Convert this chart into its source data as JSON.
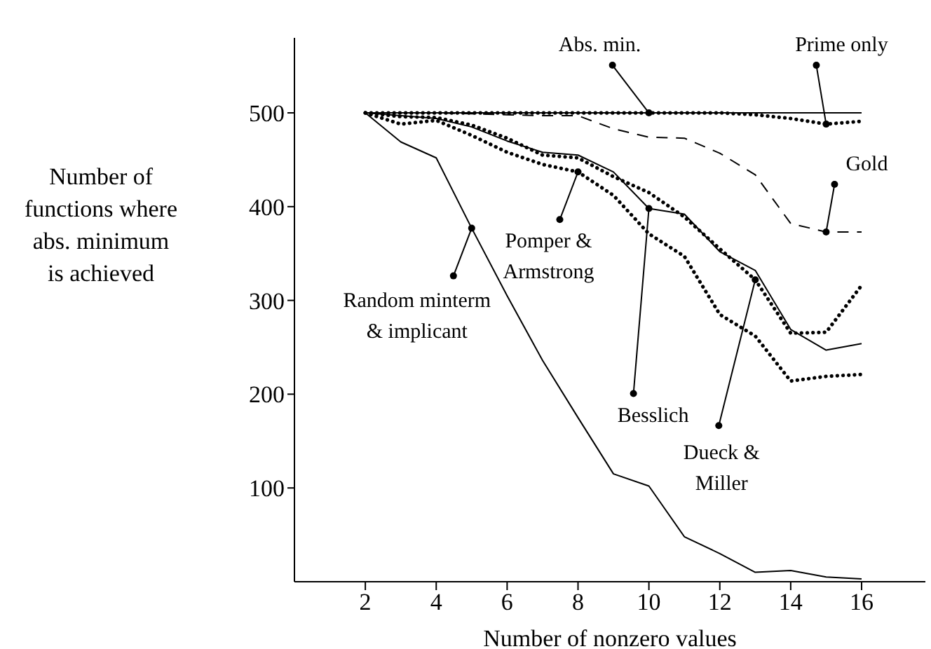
{
  "chart_data": {
    "type": "line",
    "xlabel": "Number of nonzero values",
    "ylabel": "Number of\nfunctions where\nabs. minimum\nis achieved",
    "x": [
      2,
      3,
      4,
      5,
      6,
      7,
      8,
      9,
      10,
      11,
      12,
      13,
      14,
      15,
      16
    ],
    "series": [
      {
        "color": "#000000",
        "line_style": "solid",
        "values": [
          500,
          500,
          500,
          500,
          500,
          500,
          500,
          500,
          500,
          500,
          500,
          500,
          500,
          500,
          500
        ]
      },
      {
        "color": "#000000",
        "line_style": "dotted",
        "values": [
          500,
          500,
          500,
          500,
          500,
          500,
          500,
          500,
          500,
          500,
          500,
          498,
          494,
          488,
          491
        ]
      },
      {
        "color": "#000000",
        "line_style": "dashed",
        "values": [
          500,
          500,
          500,
          499,
          498,
          497,
          497,
          483,
          474,
          473,
          457,
          434,
          382,
          373,
          373
        ]
      },
      {
        "color": "#000000",
        "line_style": "solid",
        "values": [
          500,
          497,
          494,
          485,
          470,
          458,
          455,
          437,
          398,
          392,
          352,
          332,
          269,
          247,
          254
        ]
      },
      {
        "color": "#000000",
        "line_style": "dotted",
        "values": [
          500,
          496,
          495,
          487,
          473,
          455,
          452,
          432,
          415,
          389,
          355,
          322,
          265,
          266,
          316
        ]
      },
      {
        "color": "#000000",
        "line_style": "dotted",
        "values": [
          500,
          488,
          492,
          476,
          458,
          445,
          437,
          412,
          371,
          347,
          285,
          262,
          214,
          219,
          221
        ]
      },
      {
        "color": "#000000",
        "line_style": "solid",
        "values": [
          500,
          469,
          452,
          377,
          305,
          236,
          175,
          115,
          102,
          48,
          30,
          10,
          12,
          5,
          3
        ]
      }
    ],
    "xlim": [
      0,
      17.8
    ],
    "ylim": [
      0,
      580
    ],
    "xticks": [
      2,
      4,
      6,
      8,
      10,
      12,
      14,
      16
    ],
    "yticks": [
      100,
      200,
      300,
      400,
      500
    ],
    "grid": false,
    "legend": false,
    "marker": "none",
    "annotations": [
      {
        "text": "Abs. min.",
        "x": 10,
        "y": 500
      },
      {
        "text": "Prime only",
        "x": 15,
        "y": 488
      },
      {
        "text": "Gold",
        "x": 15,
        "y": 373
      },
      {
        "text": "Pomper &\nArmstrong",
        "x": 8,
        "y": 437
      },
      {
        "text": "Random minterm\n& implicant",
        "x": 5,
        "y": 377
      },
      {
        "text": "Besslich",
        "x": 10,
        "y": 398
      },
      {
        "text": "Dueck &\nMiller",
        "x": 13,
        "y": 322
      }
    ]
  }
}
